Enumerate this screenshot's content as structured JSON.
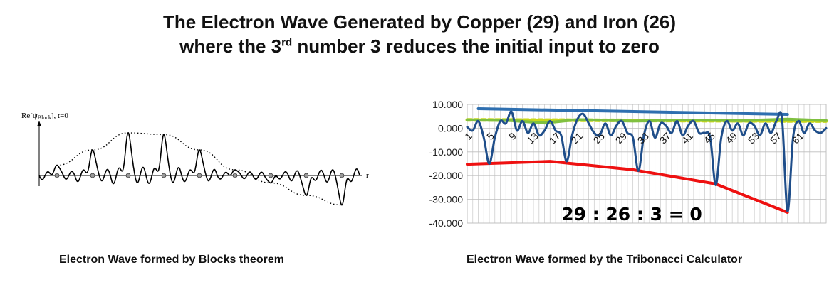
{
  "title": {
    "line1": "The Electron Wave Generated by Copper (29) and Iron (26)",
    "line2_pre": "where the 3",
    "line2_sup": "rd",
    "line2_post": " number 3 reduces the initial input to zero"
  },
  "left_chart": {
    "ylabel": "Re[ψBlock], t=0",
    "xlabel": "r",
    "caption": "Electron Wave formed by Blocks theorem"
  },
  "chart_data": [
    {
      "type": "line",
      "title": "",
      "ylabel": "Re[ψBlock], t=0",
      "xlabel": "r",
      "grid": false,
      "description_values": {
        "envelope_peak_heights": [
          0.18,
          0.45,
          0.75,
          0.72,
          0.45,
          0.1,
          -0.13,
          -0.35,
          -0.52
        ],
        "node_positions": [
          0.5,
          1.5,
          2.5,
          3.5,
          4.5,
          5.5,
          6.5,
          7.5,
          8.5
        ]
      }
    },
    {
      "type": "line",
      "title": "",
      "xlabel": "",
      "ylabel": "",
      "ylim": [
        -40,
        10
      ],
      "y_ticks": [
        "10.000",
        "0.000",
        "-10.000",
        "-20.000",
        "-30.000",
        "-40.000"
      ],
      "x_ticks": [
        "1",
        "5",
        "9",
        "13",
        "17",
        "21",
        "25",
        "29",
        "33",
        "37",
        "41",
        "45",
        "49",
        "53",
        "57",
        "61"
      ],
      "xlim": [
        0,
        65
      ],
      "grid": true,
      "annotation": "29 : 26 : 3 = 0",
      "caption": "Electron Wave formed by the Tribonacci Calculator",
      "series": [
        {
          "color": "#1f4e8a",
          "x": [
            0,
            1,
            2,
            3,
            4,
            5,
            6,
            7,
            8,
            9,
            10,
            11,
            12,
            13,
            14,
            15,
            16,
            17,
            18,
            19,
            20,
            21,
            22,
            23,
            24,
            25,
            26,
            27,
            28,
            29,
            30,
            31,
            32,
            33,
            34,
            35,
            36,
            37,
            38,
            39,
            40,
            41,
            42,
            43,
            44,
            45,
            46,
            47,
            48,
            49,
            50,
            51,
            52,
            53,
            54,
            55,
            56,
            57,
            58,
            59,
            60,
            61,
            62,
            63,
            64,
            65
          ],
          "values": [
            0.5,
            -1,
            3,
            -4,
            -15,
            -4,
            3,
            2,
            7,
            -1,
            3,
            -2,
            2,
            -3,
            -1,
            3,
            -1,
            -3,
            -14,
            -3,
            4,
            6,
            2,
            -2,
            -3,
            2,
            -3,
            1,
            3,
            -2,
            -4,
            -18,
            -3,
            3,
            -4,
            2,
            1,
            -2,
            3,
            -3,
            1,
            3,
            -2,
            -2,
            -4,
            -24,
            -4,
            3,
            -1,
            2,
            -3,
            2,
            1,
            -3,
            2,
            -2,
            3,
            4,
            -35,
            -4,
            3,
            -2,
            2,
            -1,
            -2,
            0
          ]
        },
        {
          "color": "#2e6fb0",
          "x": [
            2,
            58
          ],
          "values": [
            8.2,
            5.8
          ]
        },
        {
          "color": "#c8d81a",
          "x": [
            0,
            65
          ],
          "values": [
            3.5,
            3.0
          ]
        },
        {
          "color": "#80c040",
          "x": [
            0,
            8,
            14,
            20,
            30,
            40,
            50,
            58,
            65
          ],
          "values": [
            3.5,
            3.2,
            2.2,
            3.6,
            3.0,
            3.4,
            3.2,
            3.8,
            3.2
          ]
        },
        {
          "color": "#ee1111",
          "x": [
            0,
            15,
            30,
            45,
            58
          ],
          "values": [
            -15.2,
            -14,
            -17.5,
            -23.5,
            -35.5
          ]
        }
      ]
    }
  ]
}
